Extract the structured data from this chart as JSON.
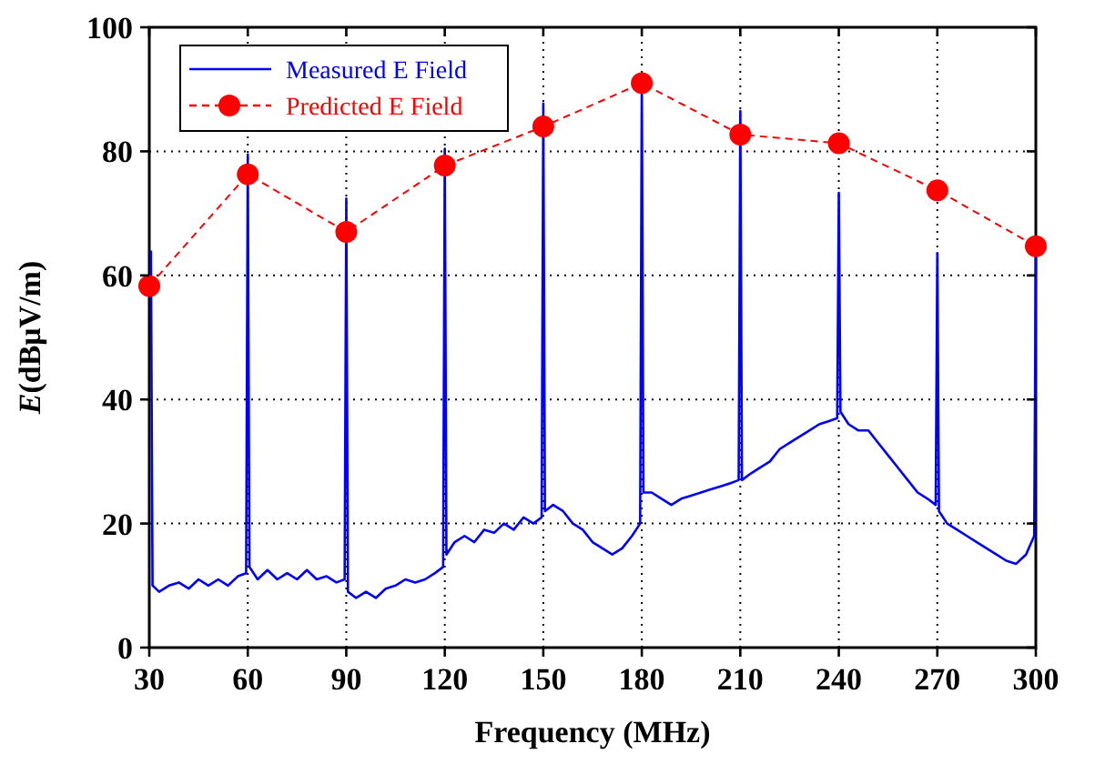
{
  "chart_data": {
    "type": "line",
    "xlabel": "Frequency (MHz)",
    "ylabel": "E(dBμV/m)",
    "xlim": [
      30,
      300
    ],
    "xticks": [
      30,
      60,
      90,
      120,
      150,
      180,
      210,
      240,
      270,
      300
    ],
    "ylim": [
      0,
      100
    ],
    "yticks": [
      0,
      20,
      40,
      60,
      80,
      100
    ],
    "grid": true,
    "legend": "top left",
    "series": [
      {
        "name": "Measured E Field",
        "color": "#0000ff",
        "line_style": "solid",
        "marker": "none",
        "x": [
          30.5,
          31,
          33,
          36,
          39,
          42,
          45,
          48,
          51,
          54,
          57,
          59.5,
          60,
          60.5,
          63,
          66,
          69,
          72,
          75,
          78,
          81,
          84,
          87,
          89.5,
          90,
          90.5,
          93,
          96,
          99,
          102,
          105,
          108,
          111,
          114,
          117,
          119.5,
          120,
          120.5,
          123,
          126,
          129,
          132,
          135,
          138,
          141,
          144,
          147,
          149.5,
          150,
          150.5,
          153,
          156,
          159,
          162,
          165,
          168,
          171,
          174,
          177,
          179.5,
          180,
          180.5,
          183,
          186,
          189,
          192,
          195,
          198,
          201,
          204,
          207,
          209.5,
          210,
          210.5,
          213,
          216,
          219,
          222,
          225,
          228,
          231,
          234,
          237,
          239.5,
          240,
          240.5,
          243,
          246,
          249,
          252,
          255,
          258,
          261,
          264,
          267,
          269.5,
          270,
          270.5,
          273,
          276,
          279,
          282,
          285,
          288,
          291,
          294,
          297,
          299.5,
          300
        ],
        "values": [
          64,
          10,
          9,
          10,
          10.5,
          9.5,
          11,
          10,
          11,
          10,
          11.5,
          12,
          79.5,
          13,
          11,
          12.5,
          11,
          12,
          11,
          12.5,
          11,
          11.5,
          10.5,
          11,
          72.4,
          9,
          8,
          9,
          8,
          9.5,
          10,
          11,
          10.5,
          11,
          12,
          13,
          80.4,
          15,
          17,
          18,
          17,
          19,
          18.5,
          20,
          19,
          21,
          20,
          21,
          87.7,
          22,
          23,
          22,
          20,
          19,
          17,
          16,
          15,
          16,
          18,
          20,
          91,
          25,
          25,
          24,
          23,
          24,
          24.5,
          25,
          25.5,
          26,
          26.5,
          27,
          86.5,
          27,
          28,
          29,
          30,
          32,
          33,
          34,
          35,
          36,
          36.5,
          37,
          73.3,
          38,
          36,
          35,
          35,
          33,
          31,
          29,
          27,
          25,
          24,
          23,
          63.6,
          22,
          20,
          19,
          18,
          17,
          16,
          15,
          14,
          13.5,
          15,
          18,
          63.3
        ]
      },
      {
        "name": "Predicted E Field",
        "color": "#ff0000",
        "line_style": "dashed",
        "marker": "circle",
        "x": [
          30,
          60,
          90,
          120,
          150,
          180,
          210,
          240,
          270,
          300
        ],
        "values": [
          58.3,
          76.3,
          67,
          77.7,
          84,
          91,
          82.7,
          81.3,
          73.7,
          64.7
        ]
      }
    ]
  }
}
